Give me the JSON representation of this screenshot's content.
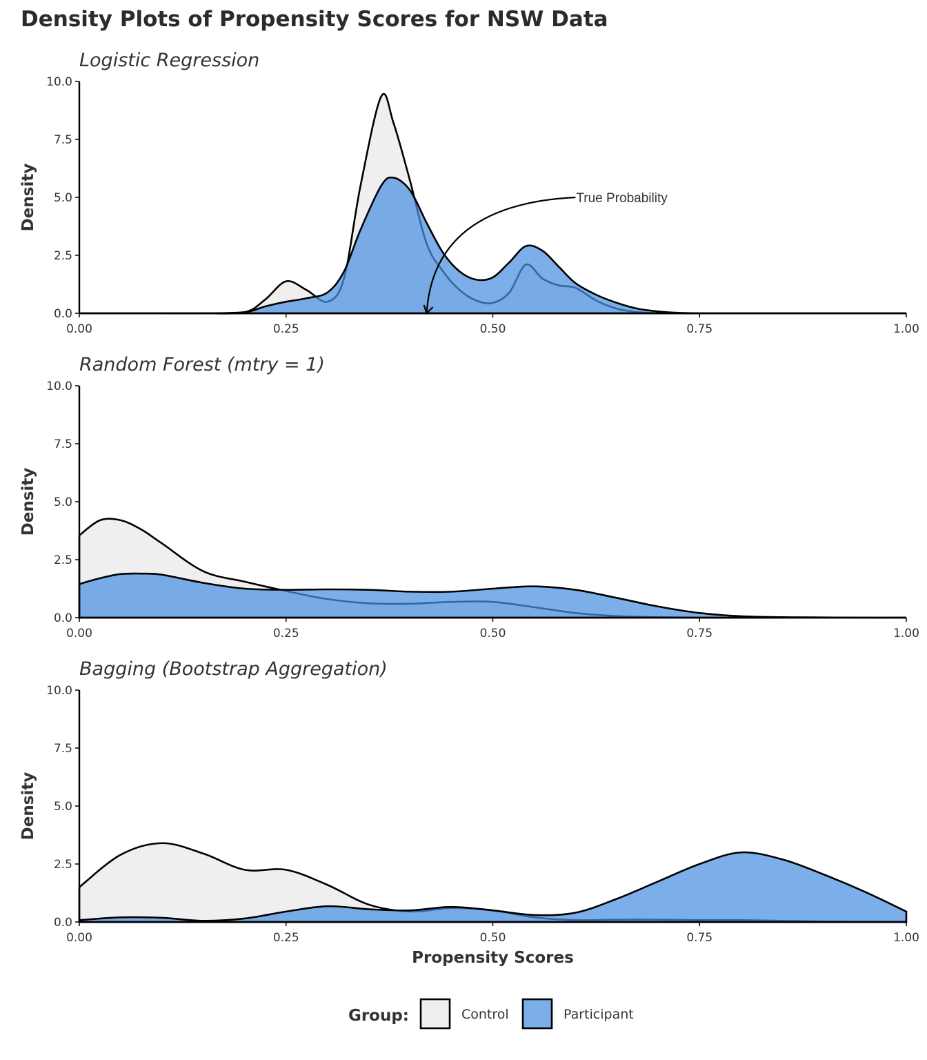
{
  "title": "Density Plots of Propensity Scores for NSW Data",
  "legend_title": "Group:",
  "chart_data": [
    {
      "type": "density",
      "title": "Logistic Regression",
      "ylabel": "Density",
      "x": [
        0,
        0.1,
        0.15,
        0.2,
        0.225,
        0.25,
        0.275,
        0.3,
        0.32,
        0.34,
        0.365,
        0.38,
        0.4,
        0.42,
        0.44,
        0.46,
        0.48,
        0.5,
        0.52,
        0.54,
        0.56,
        0.58,
        0.6,
        0.625,
        0.65,
        0.675,
        0.7,
        0.725,
        0.75,
        0.8,
        0.9,
        1.0
      ],
      "series": [
        {
          "name": "Control",
          "color": "#efefef",
          "values": [
            0,
            0,
            0,
            0.05,
            0.6,
            1.38,
            1.0,
            0.5,
            1.5,
            5.5,
            9.35,
            8.2,
            5.7,
            3.0,
            1.8,
            1.0,
            0.55,
            0.45,
            0.9,
            2.1,
            1.5,
            1.2,
            1.1,
            0.55,
            0.2,
            0.05,
            0.01,
            0,
            0,
            0,
            0,
            0
          ]
        },
        {
          "name": "Participant",
          "color": "#4a90e2",
          "values": [
            0,
            0,
            0,
            0.05,
            0.3,
            0.5,
            0.65,
            0.9,
            1.8,
            3.6,
            5.5,
            5.85,
            5.3,
            3.9,
            2.6,
            1.8,
            1.45,
            1.55,
            2.2,
            2.9,
            2.7,
            2.0,
            1.3,
            0.8,
            0.45,
            0.2,
            0.08,
            0.02,
            0,
            0,
            0,
            0
          ]
        }
      ],
      "annotations": [
        {
          "text": "True Probability",
          "x": 0.6,
          "y": 5.0,
          "arrow_x": 0.42,
          "arrow_y": 0
        }
      ],
      "xlim": [
        0,
        1
      ],
      "ylim": [
        0,
        10
      ],
      "xticks": [
        {
          "value": 0,
          "label": "0.00"
        },
        0.25,
        {
          "value": 0.5,
          "label": "0.50"
        },
        0.75,
        {
          "value": 1,
          "label": "1.00"
        }
      ],
      "yticks": [
        {
          "value": 0,
          "label": "0.0"
        },
        2.5,
        {
          "value": 5,
          "label": "5.0"
        },
        7.5,
        {
          "value": 10,
          "label": "10.0"
        }
      ]
    },
    {
      "type": "density",
      "title": "Random Forest (mtry = 1)",
      "ylabel": "Density",
      "x": [
        0,
        0.025,
        0.05,
        0.075,
        0.1,
        0.15,
        0.2,
        0.25,
        0.3,
        0.35,
        0.4,
        0.45,
        0.5,
        0.55,
        0.6,
        0.65,
        0.7,
        0.75,
        0.8,
        0.85,
        0.9,
        0.95,
        1.0
      ],
      "series": [
        {
          "name": "Control",
          "color": "#efefef",
          "values": [
            3.55,
            4.2,
            4.2,
            3.8,
            3.2,
            2.0,
            1.55,
            1.15,
            0.8,
            0.62,
            0.6,
            0.68,
            0.68,
            0.45,
            0.2,
            0.07,
            0.02,
            0,
            0,
            0,
            0,
            0,
            0
          ]
        },
        {
          "name": "Participant",
          "color": "#4a90e2",
          "values": [
            1.45,
            1.7,
            1.88,
            1.9,
            1.85,
            1.5,
            1.25,
            1.2,
            1.22,
            1.2,
            1.12,
            1.12,
            1.25,
            1.35,
            1.2,
            0.85,
            0.48,
            0.2,
            0.06,
            0.02,
            0.01,
            0,
            0
          ]
        }
      ],
      "xlim": [
        0,
        1
      ],
      "ylim": [
        0,
        10
      ],
      "xticks": [
        {
          "value": 0,
          "label": "0.00"
        },
        0.25,
        {
          "value": 0.5,
          "label": "0.50"
        },
        0.75,
        {
          "value": 1,
          "label": "1.00"
        }
      ],
      "yticks": [
        {
          "value": 0,
          "label": "0.0"
        },
        2.5,
        {
          "value": 5,
          "label": "5.0"
        },
        7.5,
        {
          "value": 10,
          "label": "10.0"
        }
      ]
    },
    {
      "type": "density",
      "title": "Bagging (Bootstrap Aggregation)",
      "ylabel": "Density",
      "xlabel": "Propensity Scores",
      "x": [
        0,
        0.05,
        0.1,
        0.15,
        0.2,
        0.25,
        0.3,
        0.35,
        0.4,
        0.45,
        0.5,
        0.55,
        0.6,
        0.65,
        0.7,
        0.75,
        0.8,
        0.85,
        0.9,
        0.95,
        1.0
      ],
      "series": [
        {
          "name": "Control",
          "color": "#efefef",
          "values": [
            1.5,
            2.9,
            3.4,
            2.95,
            2.25,
            2.25,
            1.6,
            0.75,
            0.45,
            0.6,
            0.5,
            0.2,
            0.08,
            0.1,
            0.1,
            0.08,
            0.08,
            0.05,
            0.02,
            0.01,
            0
          ]
        },
        {
          "name": "Participant",
          "color": "#4a90e2",
          "values": [
            0.08,
            0.2,
            0.18,
            0.05,
            0.15,
            0.45,
            0.68,
            0.55,
            0.5,
            0.65,
            0.5,
            0.3,
            0.4,
            1.0,
            1.75,
            2.5,
            3.0,
            2.7,
            2.05,
            1.3,
            0.45
          ]
        }
      ],
      "xlim": [
        0,
        1
      ],
      "ylim": [
        0,
        10
      ],
      "xticks": [
        {
          "value": 0,
          "label": "0.00"
        },
        0.25,
        {
          "value": 0.5,
          "label": "0.50"
        },
        0.75,
        {
          "value": 1,
          "label": "1.00"
        }
      ],
      "yticks": [
        {
          "value": 0,
          "label": "0.0"
        },
        2.5,
        {
          "value": 5,
          "label": "5.0"
        },
        7.5,
        {
          "value": 10,
          "label": "10.0"
        }
      ]
    }
  ]
}
